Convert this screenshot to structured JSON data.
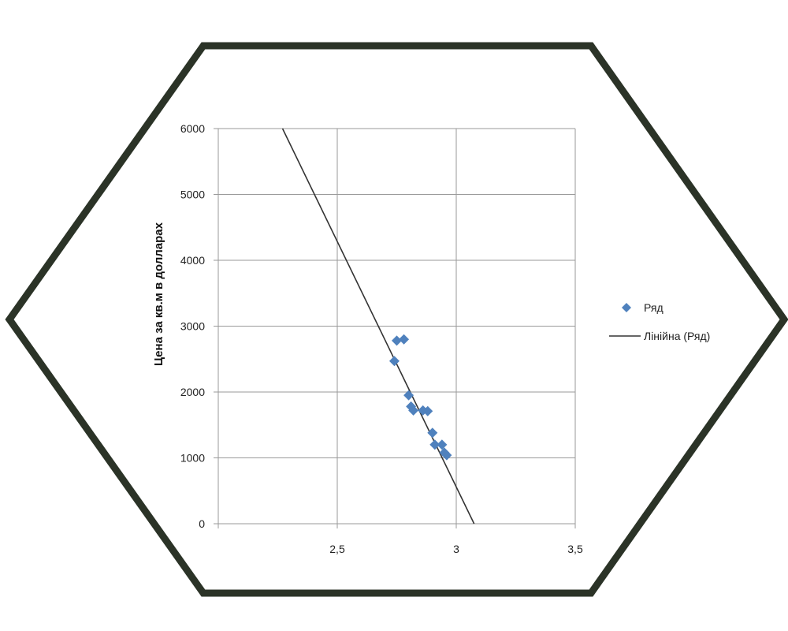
{
  "frame_color": "#2b3327",
  "chart_data": {
    "type": "scatter",
    "ylabel": "Цена за кв.м в долларах",
    "xlabel": "",
    "title": "",
    "xlim": [
      2.0,
      3.5
    ],
    "ylim": [
      0,
      6000
    ],
    "x_ticks": [
      2.5,
      3,
      3.5
    ],
    "x_tick_labels": [
      "2,5",
      "3",
      "3,5"
    ],
    "y_ticks": [
      0,
      1000,
      2000,
      3000,
      4000,
      5000,
      6000
    ],
    "y_tick_labels": [
      "0",
      "1000",
      "2000",
      "3000",
      "4000",
      "5000",
      "6000"
    ],
    "grid": true,
    "legend_position": "right",
    "series": [
      {
        "name": "Ряд",
        "kind": "scatter",
        "color": "#4f81bd",
        "marker": "diamond",
        "points": [
          [
            2.74,
            2470
          ],
          [
            2.75,
            2780
          ],
          [
            2.78,
            2800
          ],
          [
            2.8,
            1950
          ],
          [
            2.81,
            1780
          ],
          [
            2.82,
            1720
          ],
          [
            2.86,
            1720
          ],
          [
            2.88,
            1710
          ],
          [
            2.9,
            1380
          ],
          [
            2.91,
            1200
          ],
          [
            2.94,
            1200
          ],
          [
            2.95,
            1080
          ],
          [
            2.96,
            1040
          ]
        ]
      },
      {
        "name": "Лінійна (Ряд)",
        "kind": "trendline",
        "color": "#333333",
        "points": [
          [
            2.27,
            6000
          ],
          [
            3.075,
            0
          ]
        ]
      }
    ]
  }
}
